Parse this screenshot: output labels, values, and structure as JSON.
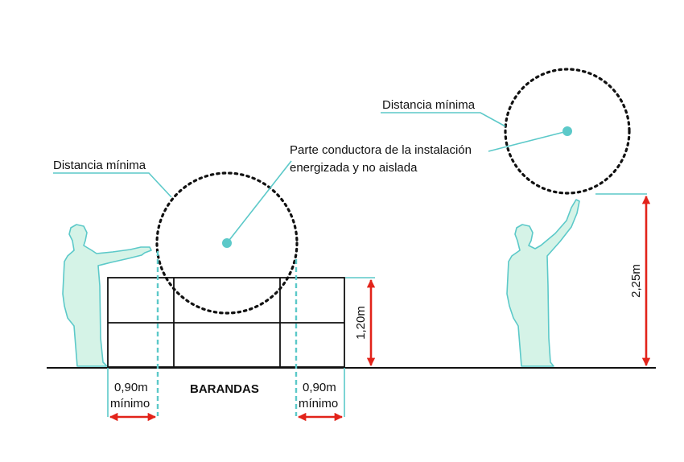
{
  "labels": {
    "min_distance_left": "Distancia mínima",
    "min_distance_right": "Distancia mínima",
    "conductor_line1": "Parte conductora de la instalación",
    "conductor_line2": "energizada y no aislada",
    "railings": "BARANDAS",
    "left_gap_value": "0,90m",
    "left_gap_note": "mínimo",
    "right_gap_value": "0,90m",
    "right_gap_note": "mínimo",
    "railing_height": "1,20m",
    "reach_height": "2,25m"
  },
  "colors": {
    "teal": "#5cc9c9",
    "person_fill": "#d5f3e7",
    "red": "#e2231a",
    "black": "#111111"
  },
  "icons": {
    "left_person": "person-reaching-forward-icon",
    "right_person": "person-reaching-up-icon"
  }
}
